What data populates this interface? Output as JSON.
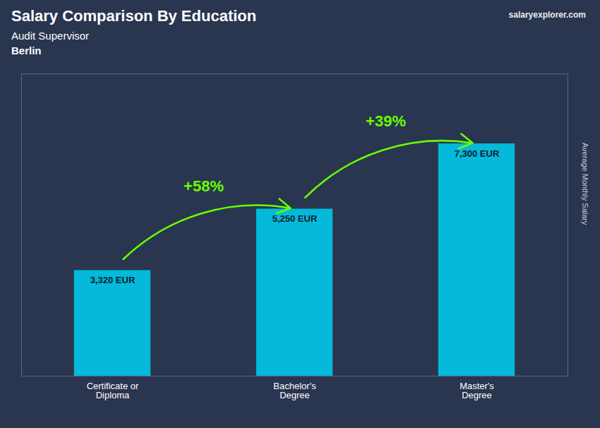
{
  "chart_data": {
    "type": "bar",
    "title": "Salary Comparison By Education",
    "subtitle": "Audit Supervisor",
    "location": "Berlin",
    "source": "salaryexplorer.com",
    "ylabel": "Average Monthly Salary",
    "categories": [
      "Certificate or\nDiploma",
      "Bachelor's\nDegree",
      "Master's\nDegree"
    ],
    "values": [
      3320,
      5250,
      7300
    ],
    "value_labels": [
      "3,320 EUR",
      "5,250 EUR",
      "7,300 EUR"
    ],
    "data_labels": true,
    "color": "#00c8e8",
    "ylim": [
      0,
      9500
    ],
    "tick_labels": "x",
    "grid": false,
    "annotations": [
      {
        "text": "+58%",
        "from": "Certificate or\nDiploma",
        "to": "Bachelor's\nDegree",
        "color": "#66ff00"
      },
      {
        "text": "+39%",
        "from": "Bachelor's\nDegree",
        "to": "Master's\nDegree",
        "color": "#66ff00"
      }
    ]
  }
}
